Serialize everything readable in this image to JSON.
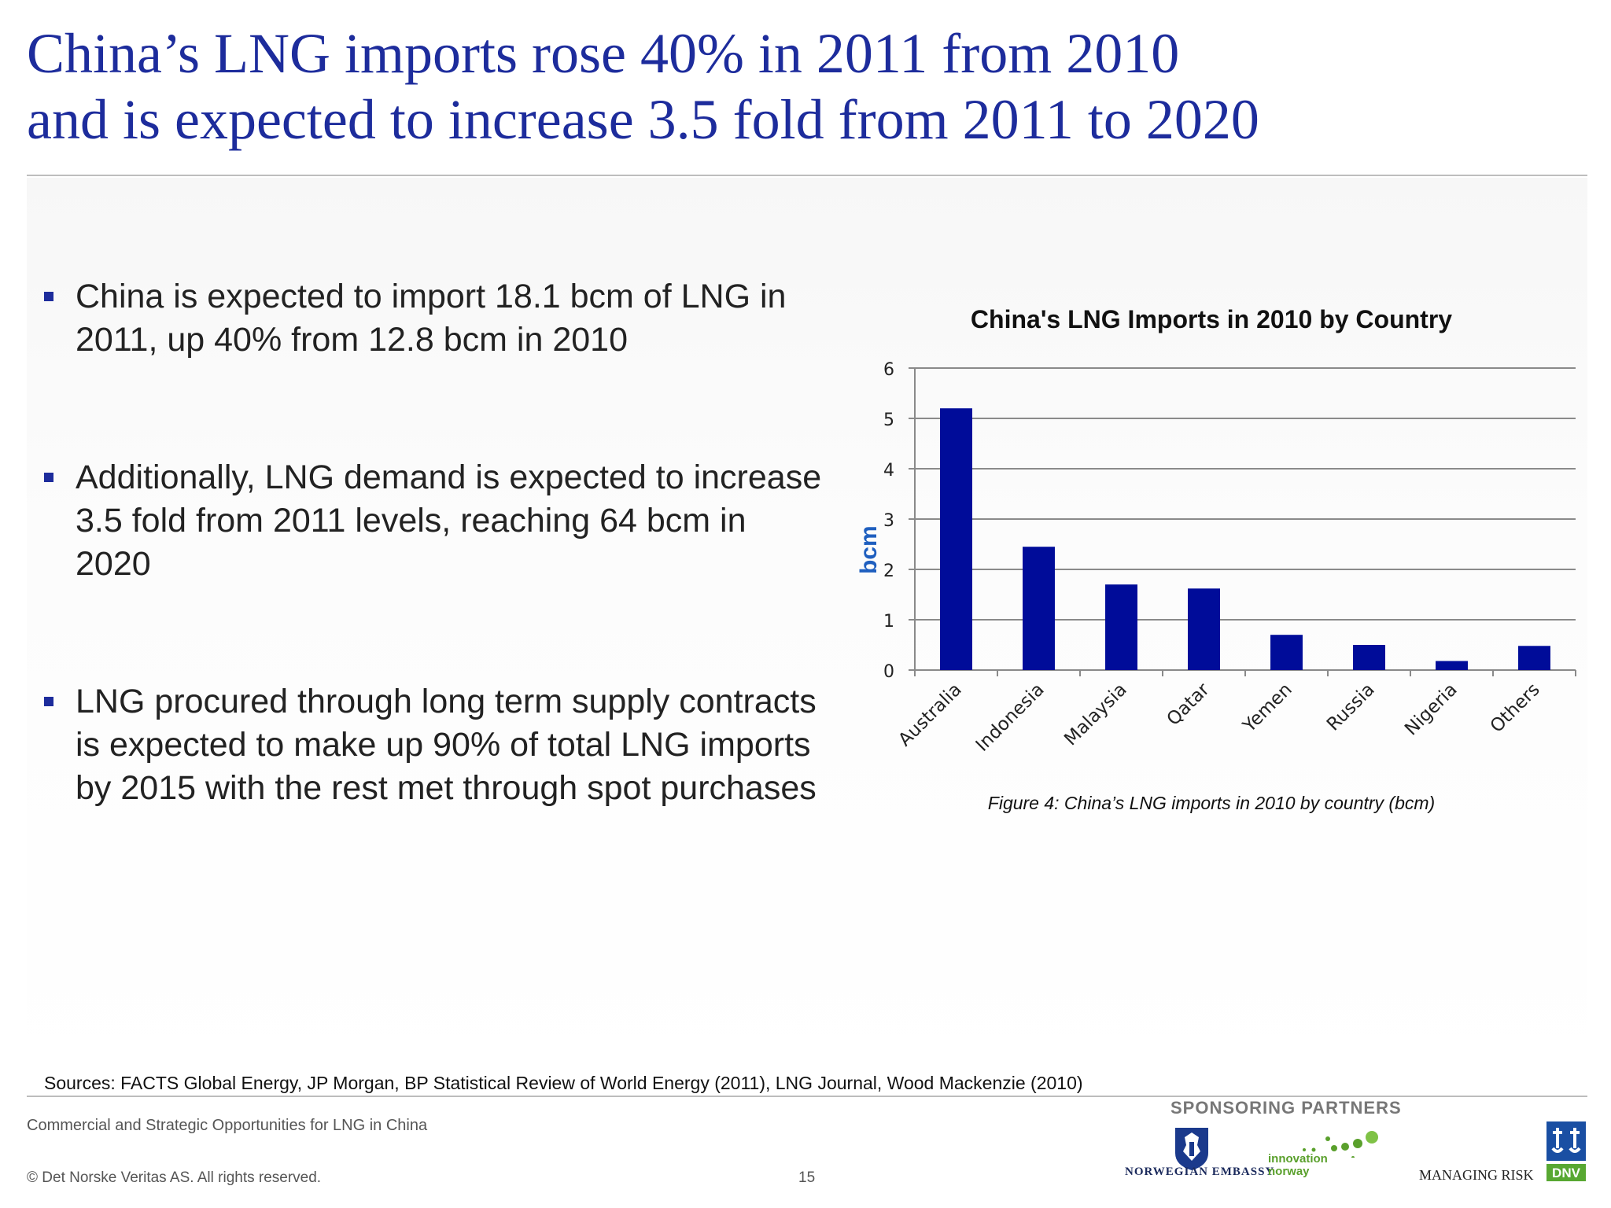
{
  "title": {
    "line1": "China’s LNG imports rose 40% in 2011 from 2010",
    "line2": "and is expected to increase 3.5 fold from 2011 to 2020"
  },
  "bullets": [
    {
      "text": "China is expected to import 18.1 bcm of LNG in 2011, up 40% from 12.8 bcm in 2010"
    },
    {
      "text": "Additionally, LNG demand is expected to increase 3.5 fold from 2011 levels, reaching 64 bcm in 2020"
    },
    {
      "text": "LNG procured through long term supply contracts is expected to make up 90% of total LNG imports by 2015 with the rest met through spot purchases"
    }
  ],
  "chart_data": {
    "type": "bar",
    "title": "China's LNG Imports in 2010 by Country",
    "ylabel": "bcm",
    "xlabel": "",
    "categories": [
      "Australia",
      "Indonesia",
      "Malaysia",
      "Qatar",
      "Yemen",
      "Russia",
      "Nigeria",
      "Others"
    ],
    "values": [
      5.2,
      2.45,
      1.7,
      1.62,
      0.7,
      0.5,
      0.18,
      0.48
    ],
    "ylim": [
      0,
      6
    ],
    "yticks": [
      0,
      1,
      2,
      3,
      4,
      5,
      6
    ],
    "grid": true,
    "bar_color": "#000c99"
  },
  "caption": "Figure 4: China’s LNG imports in 2010 by country (bcm)",
  "sources": "Sources: FACTS Global Energy, JP Morgan, BP Statistical Review of World Energy (2011), LNG Journal, Wood Mackenzie (2010)",
  "footer": {
    "title": "Commercial and Strategic Opportunities for LNG in China",
    "copyright": "© Det Norske Veritas AS. All rights reserved.",
    "page": "15"
  },
  "sponsors": {
    "label": "SPONSORING PARTNERS",
    "embassy": "NORWEGIAN EMBASSY",
    "innovation_line1": "INNOVATION",
    "innovation_line2": "NORWAY",
    "managing_risk": "MANAGING RISK",
    "dnv": "DNV"
  },
  "colors": {
    "title": "#1d2c9c",
    "bullet_square": "#1d2c9c",
    "ylabel": "#1f5fbf",
    "innovation_green": "#5aa02c"
  }
}
